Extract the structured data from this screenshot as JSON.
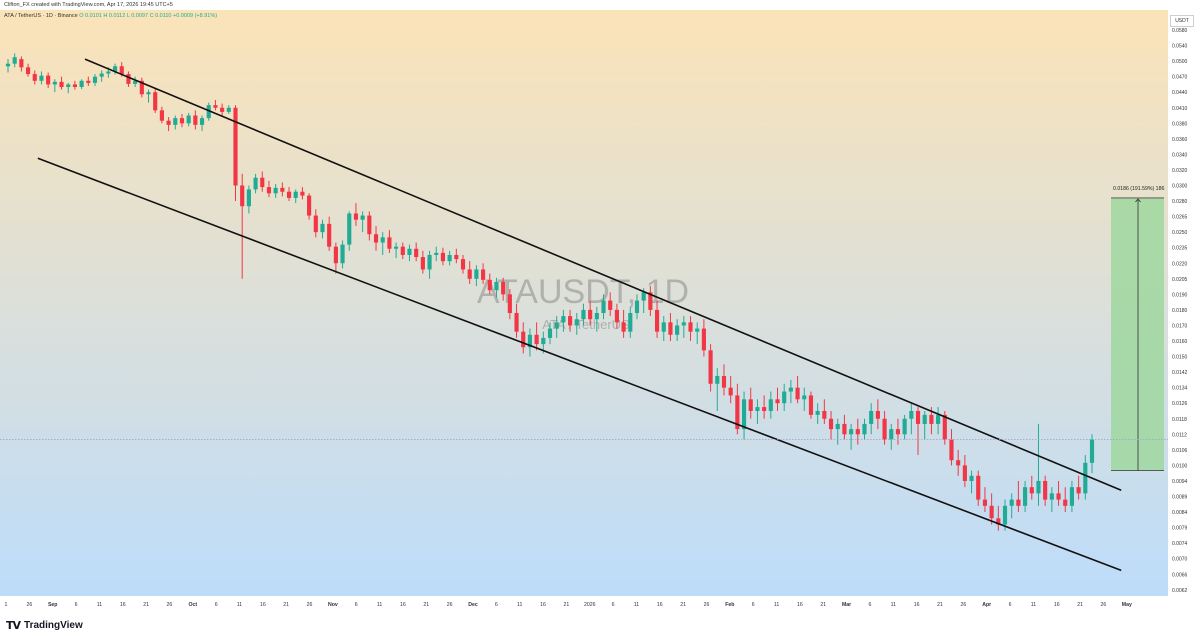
{
  "header": {
    "author_line": "Clifton_FX created with TradingView.com, Apr 17, 2026 19:45 UTC+5",
    "symbol_line": "ATA / TetherUS · 1D · Binance",
    "o": "O 0.0101",
    "h": "H 0.0112",
    "l": "L 0.0097",
    "c": "C 0.0110",
    "change": "+0.0009 (+8.91%)"
  },
  "currency_button": "USDT",
  "watermark": {
    "title": "ATAUSDT, 1D",
    "subtitle": "ATA / TetherUS"
  },
  "measure_label": "0.0186 (191.59%) 186",
  "footer": {
    "brand": "TradingView",
    "brand_mark": "TV"
  },
  "colors": {
    "bull": "#22ab94",
    "bear": "#f23645",
    "bg_top": "#fbe3b8",
    "bg_bottom": "#bcdcfb",
    "target_fill": "#9fd79f"
  },
  "chart_data": {
    "type": "candlestick",
    "title": "ATAUSDT, 1D",
    "price_ticks": [
      "0.0580",
      "0.0540",
      "0.0500",
      "0.0470",
      "0.0440",
      "0.0410",
      "0.0380",
      "0.0360",
      "0.0340",
      "0.0320",
      "0.0300",
      "0.0280",
      "0.0265",
      "0.0250",
      "0.0235",
      "0.0220",
      "0.0205",
      "0.0190",
      "0.0180",
      "0.0170",
      "0.0160",
      "0.0150",
      "0.0142",
      "0.0134",
      "0.0126",
      "0.0118",
      "0.0112",
      "0.0106",
      "0.0100",
      "0.0094",
      "0.0089",
      "0.0084",
      "0.0079",
      "0.0074",
      "0.0070",
      "0.0066",
      "0.0062"
    ],
    "time_ticks": [
      "1",
      "26",
      "Sep",
      "6",
      "11",
      "16",
      "21",
      "26",
      "Oct",
      "6",
      "11",
      "16",
      "21",
      "26",
      "Nov",
      "6",
      "11",
      "16",
      "21",
      "26",
      "Dec",
      "6",
      "11",
      "16",
      "21",
      "2026",
      "6",
      "11",
      "16",
      "21",
      "26",
      "Feb",
      "6",
      "11",
      "16",
      "21",
      "Mar",
      "6",
      "11",
      "16",
      "21",
      "26",
      "Apr",
      "6",
      "11",
      "16",
      "21",
      "26",
      "May"
    ],
    "last_price": 0.011,
    "channel_upper": {
      "start": {
        "date": "Sep 8",
        "price": 0.0505
      },
      "end": {
        "date": "Apr 23",
        "price": 0.0091
      }
    },
    "channel_lower": {
      "start": {
        "date": "Aug 22",
        "price": 0.0335
      },
      "end": {
        "date": "Apr 23",
        "price": 0.0067
      }
    },
    "target_projection": {
      "from_price": 0.0098,
      "to_price": 0.0284,
      "change": "0.0186",
      "percent": "191.59%",
      "bars": "186"
    },
    "ohlc": [
      [
        0.049,
        0.0505,
        0.0478,
        0.0495
      ],
      [
        0.0495,
        0.052,
        0.0488,
        0.051
      ],
      [
        0.0505,
        0.0512,
        0.048,
        0.0488
      ],
      [
        0.0488,
        0.0495,
        0.047,
        0.0475
      ],
      [
        0.0475,
        0.0482,
        0.0455,
        0.0462
      ],
      [
        0.0462,
        0.048,
        0.0455,
        0.0472
      ],
      [
        0.0472,
        0.0478,
        0.0448,
        0.0455
      ],
      [
        0.0455,
        0.0465,
        0.044,
        0.046
      ],
      [
        0.046,
        0.047,
        0.0445,
        0.045
      ],
      [
        0.045,
        0.0458,
        0.0438,
        0.0455
      ],
      [
        0.0455,
        0.0462,
        0.0445,
        0.045
      ],
      [
        0.045,
        0.0465,
        0.0446,
        0.0462
      ],
      [
        0.0462,
        0.047,
        0.0452,
        0.0458
      ],
      [
        0.0458,
        0.0475,
        0.0452,
        0.047
      ],
      [
        0.047,
        0.0482,
        0.046,
        0.0476
      ],
      [
        0.0476,
        0.0488,
        0.0468,
        0.048
      ],
      [
        0.048,
        0.0495,
        0.0474,
        0.049
      ],
      [
        0.049,
        0.0498,
        0.047,
        0.0475
      ],
      [
        0.0475,
        0.048,
        0.045,
        0.0456
      ],
      [
        0.0456,
        0.047,
        0.045,
        0.0462
      ],
      [
        0.0462,
        0.0468,
        0.043,
        0.0436
      ],
      [
        0.0436,
        0.0445,
        0.042,
        0.044
      ],
      [
        0.044,
        0.0448,
        0.04,
        0.0405
      ],
      [
        0.0405,
        0.0412,
        0.038,
        0.0385
      ],
      [
        0.0385,
        0.0392,
        0.037,
        0.0378
      ],
      [
        0.0378,
        0.0395,
        0.0372,
        0.039
      ],
      [
        0.039,
        0.0398,
        0.0375,
        0.038
      ],
      [
        0.038,
        0.04,
        0.0376,
        0.0395
      ],
      [
        0.0395,
        0.0405,
        0.0372,
        0.0378
      ],
      [
        0.0378,
        0.0395,
        0.037,
        0.039
      ],
      [
        0.039,
        0.042,
        0.0385,
        0.0415
      ],
      [
        0.0415,
        0.0425,
        0.0405,
        0.041
      ],
      [
        0.041,
        0.0418,
        0.0395,
        0.0402
      ],
      [
        0.0402,
        0.0415,
        0.0398,
        0.041
      ],
      [
        0.041,
        0.0415,
        0.028,
        0.03
      ],
      [
        0.03,
        0.0315,
        0.0205,
        0.0275
      ],
      [
        0.0275,
        0.03,
        0.0268,
        0.0295
      ],
      [
        0.0295,
        0.0315,
        0.029,
        0.031
      ],
      [
        0.031,
        0.0318,
        0.0292,
        0.0298
      ],
      [
        0.0298,
        0.0306,
        0.0285,
        0.029
      ],
      [
        0.029,
        0.0302,
        0.0284,
        0.0297
      ],
      [
        0.0297,
        0.0304,
        0.0286,
        0.0292
      ],
      [
        0.0292,
        0.0298,
        0.028,
        0.0284
      ],
      [
        0.0284,
        0.0295,
        0.0278,
        0.0292
      ],
      [
        0.0292,
        0.0298,
        0.0282,
        0.0287
      ],
      [
        0.0287,
        0.029,
        0.0262,
        0.0266
      ],
      [
        0.0266,
        0.0272,
        0.0245,
        0.025
      ],
      [
        0.025,
        0.0262,
        0.0244,
        0.0258
      ],
      [
        0.0258,
        0.0265,
        0.0232,
        0.0236
      ],
      [
        0.0236,
        0.024,
        0.021,
        0.022
      ],
      [
        0.022,
        0.0242,
        0.0215,
        0.0238
      ],
      [
        0.0238,
        0.027,
        0.0232,
        0.0268
      ],
      [
        0.0268,
        0.0278,
        0.0256,
        0.0262
      ],
      [
        0.0262,
        0.027,
        0.025,
        0.0266
      ],
      [
        0.0266,
        0.027,
        0.0242,
        0.0248
      ],
      [
        0.0248,
        0.0256,
        0.0232,
        0.024
      ],
      [
        0.024,
        0.025,
        0.0228,
        0.0245
      ],
      [
        0.0245,
        0.0252,
        0.023,
        0.0234
      ],
      [
        0.0234,
        0.024,
        0.0225,
        0.0236
      ],
      [
        0.0236,
        0.024,
        0.0224,
        0.0228
      ],
      [
        0.0228,
        0.0238,
        0.0222,
        0.0234
      ],
      [
        0.0234,
        0.024,
        0.0222,
        0.0226
      ],
      [
        0.0226,
        0.0232,
        0.021,
        0.0214
      ],
      [
        0.0214,
        0.0232,
        0.0205,
        0.0228
      ],
      [
        0.0228,
        0.0236,
        0.0222,
        0.023
      ],
      [
        0.023,
        0.0235,
        0.0218,
        0.0222
      ],
      [
        0.0222,
        0.0232,
        0.0218,
        0.0228
      ],
      [
        0.0228,
        0.0234,
        0.022,
        0.0224
      ],
      [
        0.0224,
        0.0228,
        0.021,
        0.0214
      ],
      [
        0.0214,
        0.0222,
        0.02,
        0.0205
      ],
      [
        0.0205,
        0.0218,
        0.0198,
        0.0214
      ],
      [
        0.0214,
        0.022,
        0.02,
        0.0204
      ],
      [
        0.0204,
        0.021,
        0.019,
        0.0194
      ],
      [
        0.0194,
        0.0206,
        0.0188,
        0.0202
      ],
      [
        0.0202,
        0.0206,
        0.0186,
        0.019
      ],
      [
        0.019,
        0.0195,
        0.0174,
        0.0178
      ],
      [
        0.0178,
        0.0184,
        0.0162,
        0.0166
      ],
      [
        0.0166,
        0.0172,
        0.0152,
        0.0156
      ],
      [
        0.0156,
        0.0168,
        0.015,
        0.0164
      ],
      [
        0.0164,
        0.0172,
        0.0154,
        0.0158
      ],
      [
        0.0158,
        0.0166,
        0.0152,
        0.0162
      ],
      [
        0.0162,
        0.0172,
        0.0158,
        0.0168
      ],
      [
        0.0168,
        0.0176,
        0.0162,
        0.0172
      ],
      [
        0.0172,
        0.018,
        0.0166,
        0.0176
      ],
      [
        0.0176,
        0.018,
        0.0166,
        0.017
      ],
      [
        0.017,
        0.0178,
        0.0164,
        0.0174
      ],
      [
        0.0174,
        0.0184,
        0.017,
        0.018
      ],
      [
        0.018,
        0.0186,
        0.017,
        0.0174
      ],
      [
        0.0174,
        0.0182,
        0.0166,
        0.0178
      ],
      [
        0.0178,
        0.019,
        0.0174,
        0.0186
      ],
      [
        0.0186,
        0.0192,
        0.0176,
        0.018
      ],
      [
        0.018,
        0.0184,
        0.0168,
        0.0172
      ],
      [
        0.0172,
        0.018,
        0.0162,
        0.0166
      ],
      [
        0.0166,
        0.0182,
        0.0162,
        0.0178
      ],
      [
        0.0178,
        0.019,
        0.0174,
        0.0186
      ],
      [
        0.0186,
        0.0196,
        0.0178,
        0.0192
      ],
      [
        0.0192,
        0.0198,
        0.0176,
        0.018
      ],
      [
        0.018,
        0.0186,
        0.0162,
        0.0166
      ],
      [
        0.0166,
        0.0176,
        0.016,
        0.0172
      ],
      [
        0.0172,
        0.0178,
        0.016,
        0.0164
      ],
      [
        0.0164,
        0.0174,
        0.016,
        0.017
      ],
      [
        0.017,
        0.0176,
        0.0162,
        0.0172
      ],
      [
        0.0172,
        0.0176,
        0.016,
        0.0166
      ],
      [
        0.0166,
        0.0172,
        0.0158,
        0.0168
      ],
      [
        0.0168,
        0.0174,
        0.015,
        0.0154
      ],
      [
        0.0154,
        0.0158,
        0.0132,
        0.0136
      ],
      [
        0.0136,
        0.0144,
        0.0122,
        0.014
      ],
      [
        0.014,
        0.0146,
        0.013,
        0.0134
      ],
      [
        0.0134,
        0.014,
        0.0126,
        0.013
      ],
      [
        0.013,
        0.0136,
        0.0112,
        0.0114
      ],
      [
        0.0114,
        0.0132,
        0.011,
        0.0128
      ],
      [
        0.0128,
        0.0134,
        0.0118,
        0.0122
      ],
      [
        0.0122,
        0.0128,
        0.0116,
        0.0124
      ],
      [
        0.0124,
        0.013,
        0.0118,
        0.0122
      ],
      [
        0.0122,
        0.0132,
        0.0118,
        0.0128
      ],
      [
        0.0128,
        0.0134,
        0.0122,
        0.0126
      ],
      [
        0.0126,
        0.0136,
        0.0122,
        0.0132
      ],
      [
        0.0132,
        0.0138,
        0.0126,
        0.0134
      ],
      [
        0.0134,
        0.014,
        0.0126,
        0.0128
      ],
      [
        0.0128,
        0.0134,
        0.0122,
        0.013
      ],
      [
        0.013,
        0.0132,
        0.0118,
        0.012
      ],
      [
        0.012,
        0.0126,
        0.0116,
        0.0122
      ],
      [
        0.0122,
        0.0128,
        0.0116,
        0.0118
      ],
      [
        0.0118,
        0.0122,
        0.011,
        0.0114
      ],
      [
        0.0114,
        0.0118,
        0.0108,
        0.0116
      ],
      [
        0.0116,
        0.012,
        0.011,
        0.0112
      ],
      [
        0.0112,
        0.0116,
        0.0106,
        0.0114
      ],
      [
        0.0114,
        0.0118,
        0.0108,
        0.0112
      ],
      [
        0.0112,
        0.0118,
        0.011,
        0.0116
      ],
      [
        0.0116,
        0.0126,
        0.0112,
        0.0122
      ],
      [
        0.0122,
        0.0128,
        0.0114,
        0.0118
      ],
      [
        0.0118,
        0.0122,
        0.0108,
        0.011
      ],
      [
        0.011,
        0.0116,
        0.0106,
        0.0114
      ],
      [
        0.0114,
        0.0118,
        0.0108,
        0.0112
      ],
      [
        0.0112,
        0.012,
        0.011,
        0.0118
      ],
      [
        0.0118,
        0.0126,
        0.0112,
        0.0122
      ],
      [
        0.0122,
        0.0124,
        0.0104,
        0.0116
      ],
      [
        0.0116,
        0.0122,
        0.011,
        0.012
      ],
      [
        0.012,
        0.0124,
        0.0112,
        0.0116
      ],
      [
        0.0116,
        0.0124,
        0.0112,
        0.012
      ],
      [
        0.012,
        0.0122,
        0.0108,
        0.011
      ],
      [
        0.011,
        0.0114,
        0.01,
        0.0102
      ],
      [
        0.0102,
        0.0106,
        0.0096,
        0.01
      ],
      [
        0.01,
        0.0104,
        0.0092,
        0.0094
      ],
      [
        0.0094,
        0.0098,
        0.009,
        0.0096
      ],
      [
        0.0096,
        0.0098,
        0.0086,
        0.0088
      ],
      [
        0.0088,
        0.0092,
        0.0084,
        0.0086
      ],
      [
        0.0086,
        0.009,
        0.008,
        0.0082
      ],
      [
        0.0082,
        0.0086,
        0.0078,
        0.008
      ],
      [
        0.008,
        0.0088,
        0.0078,
        0.0086
      ],
      [
        0.0086,
        0.009,
        0.0082,
        0.0088
      ],
      [
        0.0088,
        0.0094,
        0.0084,
        0.0086
      ],
      [
        0.0086,
        0.0094,
        0.0084,
        0.0092
      ],
      [
        0.0092,
        0.0096,
        0.0088,
        0.009
      ],
      [
        0.009,
        0.0116,
        0.0086,
        0.0094
      ],
      [
        0.0094,
        0.0096,
        0.0086,
        0.0088
      ],
      [
        0.0088,
        0.0092,
        0.0084,
        0.009
      ],
      [
        0.009,
        0.0094,
        0.0086,
        0.0088
      ],
      [
        0.0088,
        0.0092,
        0.0084,
        0.0086
      ],
      [
        0.0086,
        0.0094,
        0.0084,
        0.0092
      ],
      [
        0.0092,
        0.0096,
        0.0088,
        0.009
      ],
      [
        0.009,
        0.0104,
        0.0088,
        0.0101
      ],
      [
        0.0101,
        0.0112,
        0.0097,
        0.011
      ]
    ]
  }
}
